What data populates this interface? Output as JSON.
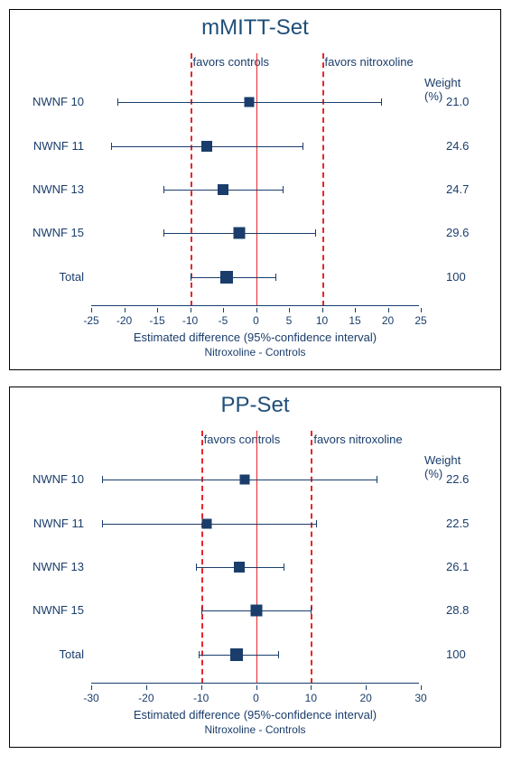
{
  "global": {
    "xlabel": "Estimated difference (95%-confidence interval)",
    "xsublabel": "Nitroxoline - Controls",
    "favors_left": "favors controls",
    "favors_right": "favors nitroxoline",
    "weight_header": "Weight (%)",
    "colors": {
      "accent": "#1a3d6b",
      "refline": "#e8262a",
      "title": "#1f4e79",
      "background": "#ffffff"
    },
    "ref_solid_x": 0,
    "ref_dashed_x": [
      -10,
      10
    ],
    "fontsize_title": 24,
    "fontsize_labels": 13,
    "fontsize_ticks": 12
  },
  "charts": [
    {
      "title": "mMITT-Set",
      "xlim": [
        -25,
        25
      ],
      "xtick_step": 5,
      "rows": [
        {
          "label": "NWNF 10",
          "est": -1.0,
          "low": -21.0,
          "high": 19.0,
          "weight": "21.0",
          "marker_size": 11
        },
        {
          "label": "NWNF 11",
          "est": -7.5,
          "low": -22.0,
          "high": 7.0,
          "weight": "24.6",
          "marker_size": 12
        },
        {
          "label": "NWNF 13",
          "est": -5.0,
          "low": -14.0,
          "high": 4.0,
          "weight": "24.7",
          "marker_size": 12
        },
        {
          "label": "NWNF 15",
          "est": -2.5,
          "low": -14.0,
          "high": 9.0,
          "weight": "29.6",
          "marker_size": 13
        },
        {
          "label": "Total",
          "est": -4.5,
          "low": -10.0,
          "high": 3.0,
          "weight": "100",
          "marker_size": 14
        }
      ]
    },
    {
      "title": "PP-Set",
      "xlim": [
        -30,
        30
      ],
      "xtick_step": 10,
      "rows": [
        {
          "label": "NWNF 10",
          "est": -2.0,
          "low": -28.0,
          "high": 22.0,
          "weight": "22.6",
          "marker_size": 11
        },
        {
          "label": "NWNF 11",
          "est": -9.0,
          "low": -28.0,
          "high": 11.0,
          "weight": "22.5",
          "marker_size": 11
        },
        {
          "label": "NWNF 13",
          "est": -3.0,
          "low": -11.0,
          "high": 5.0,
          "weight": "26.1",
          "marker_size": 12
        },
        {
          "label": "NWNF 15",
          "est": 0.0,
          "low": -10.0,
          "high": 10.0,
          "weight": "28.8",
          "marker_size": 13
        },
        {
          "label": "Total",
          "est": -3.5,
          "low": -10.5,
          "high": 4.0,
          "weight": "100",
          "marker_size": 14
        }
      ]
    }
  ]
}
